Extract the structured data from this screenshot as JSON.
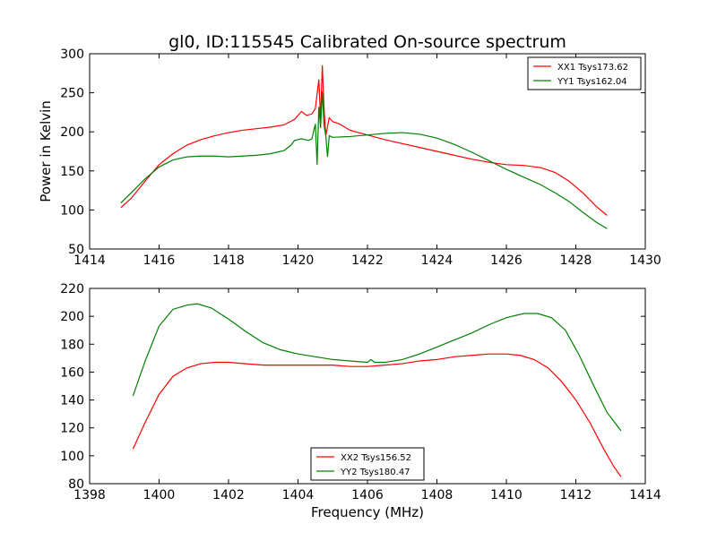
{
  "title": "gl0, ID:115545 Calibrated On-source spectrum",
  "xlabel": "Frequency (MHz)",
  "colors": {
    "red": "#ff0000",
    "green": "#008000"
  },
  "chart_data": [
    {
      "type": "line",
      "title": "gl0, ID:115545 Calibrated On-source spectrum",
      "xlabel": "",
      "ylabel": "Power in Kelvin",
      "xlim": [
        1414,
        1430
      ],
      "ylim": [
        50,
        300
      ],
      "xticks": [
        1414,
        1416,
        1418,
        1420,
        1422,
        1424,
        1426,
        1428,
        1430
      ],
      "yticks": [
        50,
        100,
        150,
        200,
        250,
        300
      ],
      "grid": false,
      "legend": "top-right",
      "series": [
        {
          "name": "XX1 Tsys173.62",
          "color": "#ff0000",
          "points": [
            [
              1414.9,
              103
            ],
            [
              1415.2,
              115
            ],
            [
              1415.6,
              137
            ],
            [
              1416.0,
              158
            ],
            [
              1416.4,
              172
            ],
            [
              1416.8,
              183
            ],
            [
              1417.2,
              190
            ],
            [
              1417.6,
              195
            ],
            [
              1418.0,
              199
            ],
            [
              1418.4,
              202
            ],
            [
              1418.8,
              204
            ],
            [
              1419.2,
              206
            ],
            [
              1419.6,
              209
            ],
            [
              1419.9,
              216
            ],
            [
              1420.1,
              226
            ],
            [
              1420.25,
              221
            ],
            [
              1420.4,
              223
            ],
            [
              1420.5,
              230
            ],
            [
              1420.6,
              267
            ],
            [
              1420.65,
              215
            ],
            [
              1420.7,
              285
            ],
            [
              1420.75,
              230
            ],
            [
              1420.8,
              195
            ],
            [
              1420.9,
              218
            ],
            [
              1421.0,
              213
            ],
            [
              1421.2,
              210
            ],
            [
              1421.5,
              202
            ],
            [
              1422.0,
              196
            ],
            [
              1422.5,
              190
            ],
            [
              1423.0,
              185
            ],
            [
              1423.5,
              180
            ],
            [
              1424.0,
              175
            ],
            [
              1424.5,
              170
            ],
            [
              1425.0,
              165
            ],
            [
              1425.5,
              161
            ],
            [
              1426.0,
              158
            ],
            [
              1426.5,
              157
            ],
            [
              1427.0,
              154
            ],
            [
              1427.4,
              148
            ],
            [
              1427.8,
              137
            ],
            [
              1428.2,
              122
            ],
            [
              1428.6,
              104
            ],
            [
              1428.9,
              93
            ]
          ]
        },
        {
          "name": "YY1 Tsys162.04",
          "color": "#008000",
          "points": [
            [
              1414.9,
              109
            ],
            [
              1415.2,
              122
            ],
            [
              1415.6,
              140
            ],
            [
              1416.0,
              155
            ],
            [
              1416.4,
              164
            ],
            [
              1416.8,
              168
            ],
            [
              1417.2,
              169
            ],
            [
              1417.6,
              169
            ],
            [
              1418.0,
              168
            ],
            [
              1418.4,
              169
            ],
            [
              1418.8,
              170
            ],
            [
              1419.2,
              172
            ],
            [
              1419.6,
              176
            ],
            [
              1419.8,
              183
            ],
            [
              1419.9,
              189
            ],
            [
              1420.1,
              191
            ],
            [
              1420.3,
              189
            ],
            [
              1420.4,
              191
            ],
            [
              1420.5,
              210
            ],
            [
              1420.55,
              158
            ],
            [
              1420.6,
              232
            ],
            [
              1420.65,
              205
            ],
            [
              1420.7,
              252
            ],
            [
              1420.75,
              208
            ],
            [
              1420.8,
              195
            ],
            [
              1420.85,
              168
            ],
            [
              1420.9,
              195
            ],
            [
              1421.0,
              193
            ],
            [
              1421.5,
              194
            ],
            [
              1422.0,
              196
            ],
            [
              1422.5,
              198
            ],
            [
              1423.0,
              199
            ],
            [
              1423.5,
              197
            ],
            [
              1424.0,
              192
            ],
            [
              1424.5,
              184
            ],
            [
              1425.0,
              174
            ],
            [
              1425.5,
              163
            ],
            [
              1426.0,
              152
            ],
            [
              1426.5,
              142
            ],
            [
              1427.0,
              132
            ],
            [
              1427.4,
              122
            ],
            [
              1427.8,
              111
            ],
            [
              1428.2,
              97
            ],
            [
              1428.6,
              84
            ],
            [
              1428.9,
              76
            ]
          ]
        }
      ]
    },
    {
      "type": "line",
      "title": "",
      "xlabel": "Frequency (MHz)",
      "ylabel": "",
      "xlim": [
        1398,
        1414
      ],
      "ylim": [
        80,
        220
      ],
      "xticks": [
        1398,
        1400,
        1402,
        1404,
        1406,
        1408,
        1410,
        1412,
        1414
      ],
      "yticks": [
        80,
        100,
        120,
        140,
        160,
        180,
        200,
        220
      ],
      "grid": false,
      "legend": "bottom-center",
      "series": [
        {
          "name": "XX2 Tsys156.52",
          "color": "#ff0000",
          "points": [
            [
              1399.25,
              105
            ],
            [
              1399.6,
              124
            ],
            [
              1400.0,
              144
            ],
            [
              1400.4,
              157
            ],
            [
              1400.8,
              163
            ],
            [
              1401.2,
              166
            ],
            [
              1401.6,
              167
            ],
            [
              1402.0,
              167
            ],
            [
              1402.5,
              166
            ],
            [
              1403.0,
              165
            ],
            [
              1403.5,
              165
            ],
            [
              1404.0,
              165
            ],
            [
              1404.5,
              165
            ],
            [
              1405.0,
              165
            ],
            [
              1405.5,
              164
            ],
            [
              1406.0,
              164
            ],
            [
              1406.5,
              165
            ],
            [
              1407.0,
              166
            ],
            [
              1407.5,
              168
            ],
            [
              1408.0,
              169
            ],
            [
              1408.5,
              171
            ],
            [
              1409.0,
              172
            ],
            [
              1409.5,
              173
            ],
            [
              1410.0,
              173
            ],
            [
              1410.4,
              172
            ],
            [
              1410.8,
              169
            ],
            [
              1411.2,
              163
            ],
            [
              1411.6,
              153
            ],
            [
              1412.0,
              140
            ],
            [
              1412.4,
              124
            ],
            [
              1412.8,
              105
            ],
            [
              1413.1,
              92
            ],
            [
              1413.3,
              85
            ]
          ]
        },
        {
          "name": "YY2 Tsys180.47",
          "color": "#008000",
          "points": [
            [
              1399.25,
              143
            ],
            [
              1399.6,
              168
            ],
            [
              1400.0,
              193
            ],
            [
              1400.4,
              205
            ],
            [
              1400.8,
              208
            ],
            [
              1401.1,
              209
            ],
            [
              1401.5,
              206
            ],
            [
              1402.0,
              198
            ],
            [
              1402.5,
              189
            ],
            [
              1403.0,
              181
            ],
            [
              1403.5,
              176
            ],
            [
              1404.0,
              173
            ],
            [
              1404.5,
              171
            ],
            [
              1405.0,
              169
            ],
            [
              1405.5,
              168
            ],
            [
              1406.0,
              167
            ],
            [
              1406.1,
              169
            ],
            [
              1406.2,
              167
            ],
            [
              1406.5,
              167
            ],
            [
              1407.0,
              169
            ],
            [
              1407.5,
              173
            ],
            [
              1408.0,
              178
            ],
            [
              1408.5,
              183
            ],
            [
              1409.0,
              188
            ],
            [
              1409.5,
              194
            ],
            [
              1410.0,
              199
            ],
            [
              1410.5,
              202
            ],
            [
              1410.9,
              202
            ],
            [
              1411.3,
              199
            ],
            [
              1411.7,
              190
            ],
            [
              1412.1,
              172
            ],
            [
              1412.5,
              151
            ],
            [
              1412.9,
              131
            ],
            [
              1413.3,
              118
            ]
          ]
        }
      ]
    }
  ]
}
